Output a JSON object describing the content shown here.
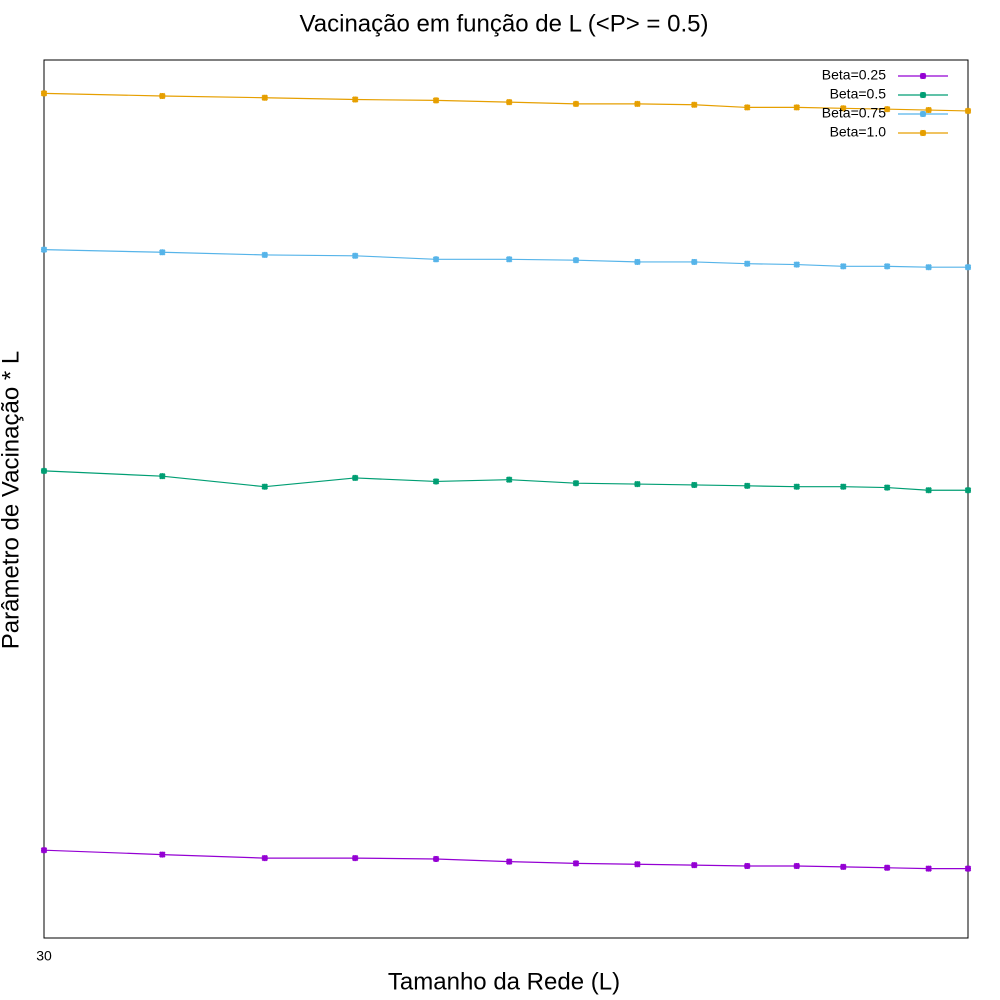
{
  "chart_data": {
    "type": "line",
    "title": "Vacinação em função de L (<P> = 0.5)",
    "xlabel": "Tamanho da Rede (L)",
    "ylabel": "Parâmetro de Vacinação * L",
    "x": [
      30,
      35,
      40,
      45,
      50,
      55,
      60,
      65,
      70,
      75,
      80,
      85,
      90,
      95,
      100
    ],
    "xlim": [
      30,
      100
    ],
    "xticks": [
      30
    ],
    "xlog": true,
    "ylim": [
      0,
      1
    ],
    "legend": "upper right",
    "series": [
      {
        "name": "Beta=0.25",
        "color": "#9400d3",
        "values": [
          0.1,
          0.095,
          0.091,
          0.091,
          0.09,
          0.087,
          0.085,
          0.084,
          0.083,
          0.082,
          0.082,
          0.081,
          0.08,
          0.079,
          0.079
        ]
      },
      {
        "name": "Beta=0.5",
        "color": "#009e73",
        "values": [
          0.532,
          0.526,
          0.514,
          0.524,
          0.52,
          0.522,
          0.518,
          0.517,
          0.516,
          0.515,
          0.514,
          0.514,
          0.513,
          0.51,
          0.51
        ]
      },
      {
        "name": "Beta=0.75",
        "color": "#56b4e9",
        "values": [
          0.784,
          0.781,
          0.778,
          0.777,
          0.773,
          0.773,
          0.772,
          0.77,
          0.77,
          0.768,
          0.767,
          0.765,
          0.765,
          0.764,
          0.764
        ]
      },
      {
        "name": "Beta=1.0",
        "color": "#e69f00",
        "values": [
          0.962,
          0.959,
          0.957,
          0.955,
          0.954,
          0.952,
          0.95,
          0.95,
          0.949,
          0.946,
          0.946,
          0.945,
          0.944,
          0.943,
          0.942
        ]
      }
    ]
  }
}
